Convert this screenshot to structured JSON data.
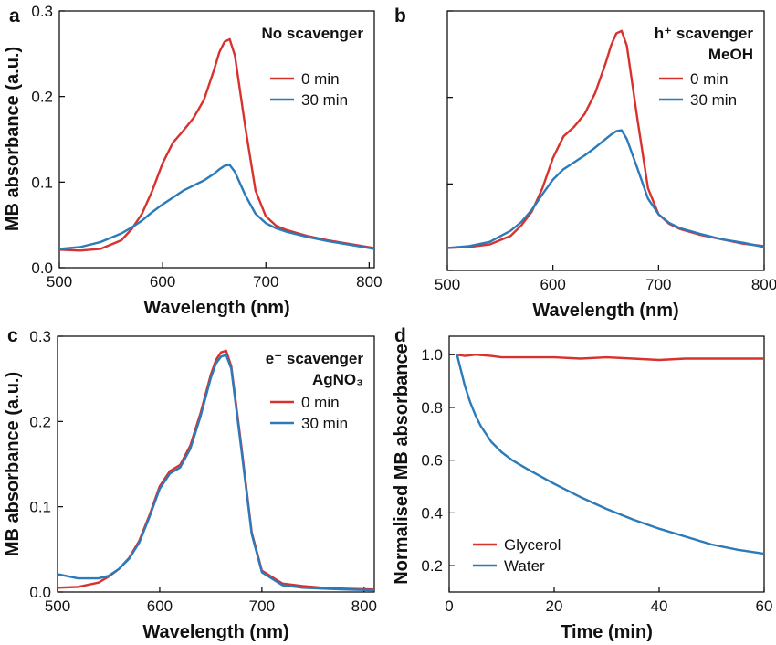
{
  "chart_data": [
    {
      "panel": "a",
      "type": "line",
      "annotation": [
        "No scavenger"
      ],
      "xlabel": "Wavelength (nm)",
      "ylabel": "MB absorbance (a.u.)",
      "xlim": [
        500,
        805
      ],
      "ylim": [
        0,
        0.3
      ],
      "xticks": [
        500,
        600,
        700,
        800
      ],
      "yticks": [
        0.0,
        0.1,
        0.2,
        0.3
      ],
      "ytick_labels": [
        "0.0",
        "0.1",
        "0.2",
        "0.3"
      ],
      "show_ytick_labels": true,
      "grid": false,
      "legend": "right",
      "series": [
        {
          "name": "0 min",
          "color": "#d7322d",
          "x": [
            500,
            520,
            540,
            560,
            570,
            580,
            590,
            600,
            610,
            620,
            630,
            640,
            650,
            655,
            660,
            665,
            670,
            680,
            690,
            700,
            710,
            720,
            740,
            760,
            780,
            805
          ],
          "y": [
            0.021,
            0.02,
            0.022,
            0.032,
            0.045,
            0.063,
            0.09,
            0.122,
            0.146,
            0.16,
            0.175,
            0.196,
            0.232,
            0.252,
            0.264,
            0.267,
            0.248,
            0.165,
            0.09,
            0.06,
            0.049,
            0.044,
            0.037,
            0.032,
            0.028,
            0.023
          ]
        },
        {
          "name": "30 min",
          "color": "#2b7bba",
          "x": [
            500,
            520,
            540,
            560,
            570,
            580,
            590,
            600,
            610,
            620,
            630,
            640,
            650,
            655,
            660,
            665,
            670,
            680,
            690,
            700,
            710,
            720,
            740,
            760,
            780,
            805
          ],
          "y": [
            0.022,
            0.024,
            0.03,
            0.04,
            0.047,
            0.055,
            0.065,
            0.074,
            0.082,
            0.09,
            0.096,
            0.102,
            0.11,
            0.115,
            0.119,
            0.12,
            0.112,
            0.085,
            0.063,
            0.052,
            0.046,
            0.042,
            0.036,
            0.031,
            0.027,
            0.022
          ]
        }
      ]
    },
    {
      "panel": "b",
      "type": "line",
      "annotation": [
        "h⁺ scavenger",
        "MeOH"
      ],
      "xlabel": "Wavelength (nm)",
      "ylabel": "",
      "xlim": [
        500,
        800
      ],
      "ylim": [
        0,
        0.3
      ],
      "xticks": [
        500,
        600,
        700,
        800
      ],
      "yticks": [
        0.0,
        0.1,
        0.2,
        0.3
      ],
      "ytick_labels": [
        "",
        "",
        "",
        ""
      ],
      "show_ytick_labels": false,
      "grid": false,
      "legend": "right",
      "series": [
        {
          "name": "0 min",
          "color": "#d7322d",
          "x": [
            500,
            520,
            540,
            560,
            570,
            580,
            590,
            600,
            610,
            620,
            630,
            640,
            650,
            655,
            660,
            665,
            670,
            680,
            690,
            700,
            710,
            720,
            740,
            760,
            780,
            800
          ],
          "y": [
            0.026,
            0.027,
            0.03,
            0.04,
            0.052,
            0.068,
            0.095,
            0.13,
            0.155,
            0.166,
            0.181,
            0.205,
            0.24,
            0.26,
            0.274,
            0.277,
            0.26,
            0.175,
            0.095,
            0.065,
            0.054,
            0.048,
            0.041,
            0.036,
            0.031,
            0.028
          ]
        },
        {
          "name": "30 min",
          "color": "#2b7bba",
          "x": [
            500,
            520,
            540,
            560,
            570,
            580,
            590,
            600,
            610,
            620,
            630,
            640,
            650,
            655,
            660,
            665,
            670,
            680,
            690,
            700,
            710,
            720,
            740,
            760,
            780,
            800
          ],
          "y": [
            0.026,
            0.028,
            0.033,
            0.046,
            0.056,
            0.07,
            0.088,
            0.105,
            0.117,
            0.125,
            0.133,
            0.142,
            0.152,
            0.157,
            0.161,
            0.162,
            0.152,
            0.118,
            0.083,
            0.065,
            0.055,
            0.049,
            0.042,
            0.036,
            0.032,
            0.027
          ]
        }
      ]
    },
    {
      "panel": "c",
      "type": "line",
      "annotation": [
        "e⁻ scavenger",
        "AgNO₃"
      ],
      "xlabel": "Wavelength (nm)",
      "ylabel": "MB absorbance (a.u.)",
      "xlim": [
        500,
        810
      ],
      "ylim": [
        0,
        0.3
      ],
      "xticks": [
        500,
        600,
        700,
        800
      ],
      "yticks": [
        0.0,
        0.1,
        0.2,
        0.3
      ],
      "ytick_labels": [
        "0.0",
        "0.1",
        "0.2",
        "0.3"
      ],
      "show_ytick_labels": true,
      "grid": false,
      "legend": "right",
      "series": [
        {
          "name": "0 min",
          "color": "#d7322d",
          "x": [
            500,
            520,
            540,
            550,
            560,
            570,
            580,
            590,
            600,
            610,
            620,
            630,
            640,
            650,
            655,
            660,
            665,
            670,
            680,
            690,
            700,
            720,
            740,
            760,
            780,
            810
          ],
          "y": [
            0.005,
            0.006,
            0.011,
            0.018,
            0.027,
            0.04,
            0.06,
            0.09,
            0.124,
            0.142,
            0.149,
            0.172,
            0.21,
            0.255,
            0.272,
            0.281,
            0.283,
            0.265,
            0.17,
            0.07,
            0.025,
            0.01,
            0.007,
            0.005,
            0.004,
            0.003
          ]
        },
        {
          "name": "30 min",
          "color": "#2b7bba",
          "x": [
            500,
            520,
            540,
            550,
            560,
            570,
            580,
            590,
            600,
            610,
            620,
            630,
            640,
            650,
            655,
            660,
            665,
            670,
            680,
            690,
            700,
            720,
            740,
            760,
            780,
            810
          ],
          "y": [
            0.021,
            0.016,
            0.016,
            0.019,
            0.027,
            0.039,
            0.058,
            0.088,
            0.121,
            0.139,
            0.146,
            0.168,
            0.206,
            0.251,
            0.268,
            0.276,
            0.278,
            0.262,
            0.166,
            0.068,
            0.023,
            0.008,
            0.005,
            0.004,
            0.003,
            0.002
          ]
        }
      ]
    },
    {
      "panel": "d",
      "type": "line",
      "annotation": [],
      "xlabel": "Time (min)",
      "ylabel": "Normalised MB absorbance",
      "xlim": [
        0,
        60
      ],
      "ylim": [
        0.1,
        1.07
      ],
      "xticks": [
        0,
        20,
        40,
        60
      ],
      "yticks": [
        0.2,
        0.4,
        0.6,
        0.8,
        1.0
      ],
      "ytick_labels": [
        "0.2",
        "0.4",
        "0.6",
        "0.8",
        "1.0"
      ],
      "show_ytick_labels": true,
      "grid": false,
      "legend": "lower-left",
      "series": [
        {
          "name": "Glycerol",
          "color": "#d7322d",
          "x": [
            1.5,
            3,
            5,
            8,
            10,
            15,
            20,
            25,
            30,
            35,
            40,
            45,
            50,
            55,
            60
          ],
          "y": [
            1.0,
            0.995,
            1.0,
            0.995,
            0.99,
            0.99,
            0.99,
            0.985,
            0.99,
            0.985,
            0.98,
            0.985,
            0.985,
            0.985,
            0.985
          ]
        },
        {
          "name": "Water",
          "color": "#2b7bba",
          "x": [
            1.5,
            2,
            3,
            4,
            5,
            6,
            8,
            10,
            12,
            15,
            20,
            25,
            30,
            35,
            40,
            45,
            50,
            55,
            60
          ],
          "y": [
            1.0,
            0.96,
            0.88,
            0.82,
            0.77,
            0.73,
            0.67,
            0.63,
            0.6,
            0.565,
            0.51,
            0.46,
            0.415,
            0.375,
            0.34,
            0.31,
            0.28,
            0.26,
            0.245
          ]
        }
      ]
    }
  ]
}
